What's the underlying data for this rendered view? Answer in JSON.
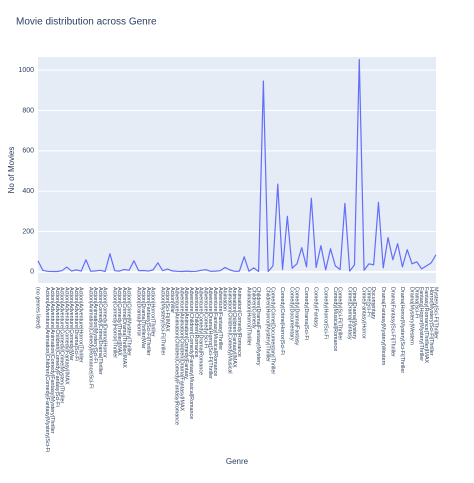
{
  "chart_data": {
    "type": "line",
    "title": "Movie distribution across Genre",
    "x_label": "Genre",
    "y_label": "No of Movies",
    "color": "#636efa",
    "grid": true,
    "ylim": [
      -55,
      1065
    ],
    "yticks": [
      0,
      200,
      400,
      600,
      800,
      1000
    ],
    "categories": [
      "(no genres listed)",
      null,
      "Action|Adventure|Animation|Children|Comedy|Fantasy|Mystery|Sci-Fi",
      "Action|Adventure|Animation|Comedy|Fantasy|Mystery|Thriller",
      "Action|Adventure|Children|Comedy|Fantasy|Sci-Fi",
      "Action|Adventure|Comedy|Crime|Mystery|Thriller",
      "Action|Adventure|Comedy|Fantasy|IMAX",
      "Action|Adventure|Comedy|War",
      "Action|Adventure|Drama|Sci-Fi",
      "Action|Adventure|Horror|Thriller",
      null,
      "Action|Animation|Comedy|Romance|Sci-Fi",
      "Action|Animation|Mystery|Sci-Fi",
      "Action|Comedy|Crime|Drama|Thriller",
      "Action|Comedy|Drama|Horror",
      null,
      "Action|Comedy|Horror|Thriller",
      "Action|Comedy|Thriller|IMAX",
      "Action|Crime|Drama|Thriller|IMAX",
      "Action|Crime|Mystery|Thriller",
      null,
      "Action|Drama|Horror",
      "Action|Drama|Thriller|War",
      "Action|Fantasy|Sci-Fi|Thriller",
      "Action|Horror|Thriller",
      null,
      "Action|Mystery|Sci-Fi|Thriller",
      "Action|Sci-Fi|IMAX",
      "Action|War",
      "Adventure|Animation|Children|Comedy|Fantasy|Romance",
      "Adventure|Animation|Children|Drama|Fantasy|IMAX",
      "Adventure|Animation|Comedy|Fantasy",
      "Adventure|Children|Comedy|Fantasy|Musical|Romance",
      "Adventure|Children|Romance",
      "Adventure|Comedy|Drama|Romance",
      "Adventure|Comedy|Sci-Fi",
      "Adventure|Drama|Horror|Sci-Fi|Thriller",
      "Adventure|Fantasy|Musical|Romance",
      "Adventure|Fantasy|Thriller",
      "Animation",
      "Animation|Children|Comedy|Musical",
      "Animation|Children|Fantasy|IMAX",
      "Animation|Comedy|Romance",
      null,
      "Animation|Horror|Thriller",
      "Children|Comedy",
      "Children|Drama|Fantasy|Mystery",
      null,
      "Children|Horror|Mystery|Thriller",
      "Comedy|Crime|Documentary|Thriller",
      null,
      "Comedy|Crime|Horror|Sci-Fi",
      null,
      "Comedy|Documentary",
      "Comedy|Drama|Fantasy",
      null,
      "Comedy|Drama|Sci-Fi",
      null,
      "Comedy|Fantasy",
      null,
      "Comedy|Horror|Sci-Fi",
      null,
      "Comedy|Musical|Romance",
      "Comedy|Sci-Fi|Thriller",
      null,
      "Crime|Drama|Fantasy",
      "Crime|Drama|Mystery",
      null,
      "Crime|Fantasy|Horror",
      "Crime|Sci-Fi",
      "Documentary",
      null,
      "Drama|Fantasy|Mystery|Western",
      null,
      "Drama|Fantasy|Sci-Fi|Thriller",
      null,
      "Drama|Horror|Mystery|Sci-Fi|Thriller",
      null,
      "Drama|Mystery|Western",
      "Drama|Sci-Fi",
      "Fantasy|Horror|Mystery|Thriller",
      "Fantasy|Romance|Thriller|IMAX",
      "Horror|Mystery|Sci-Fi|Thriller",
      "Mystery|Sci-Fi|Thriller"
    ],
    "values": [
      55,
      8,
      3,
      2,
      2,
      6,
      24,
      4,
      10,
      4,
      60,
      3,
      5,
      8,
      2,
      90,
      6,
      4,
      12,
      8,
      55,
      6,
      7,
      4,
      10,
      45,
      6,
      14,
      5,
      3,
      2,
      4,
      2,
      3,
      8,
      11,
      3,
      4,
      6,
      22,
      10,
      3,
      4,
      75,
      3,
      20,
      2,
      946,
      2,
      30,
      435,
      12,
      275,
      18,
      40,
      120,
      25,
      365,
      22,
      130,
      10,
      115,
      30,
      12,
      340,
      4,
      35,
      1053,
      8,
      40,
      35,
      345,
      20,
      170,
      60,
      140,
      25,
      110,
      40,
      50,
      15,
      30,
      45,
      85
    ]
  }
}
